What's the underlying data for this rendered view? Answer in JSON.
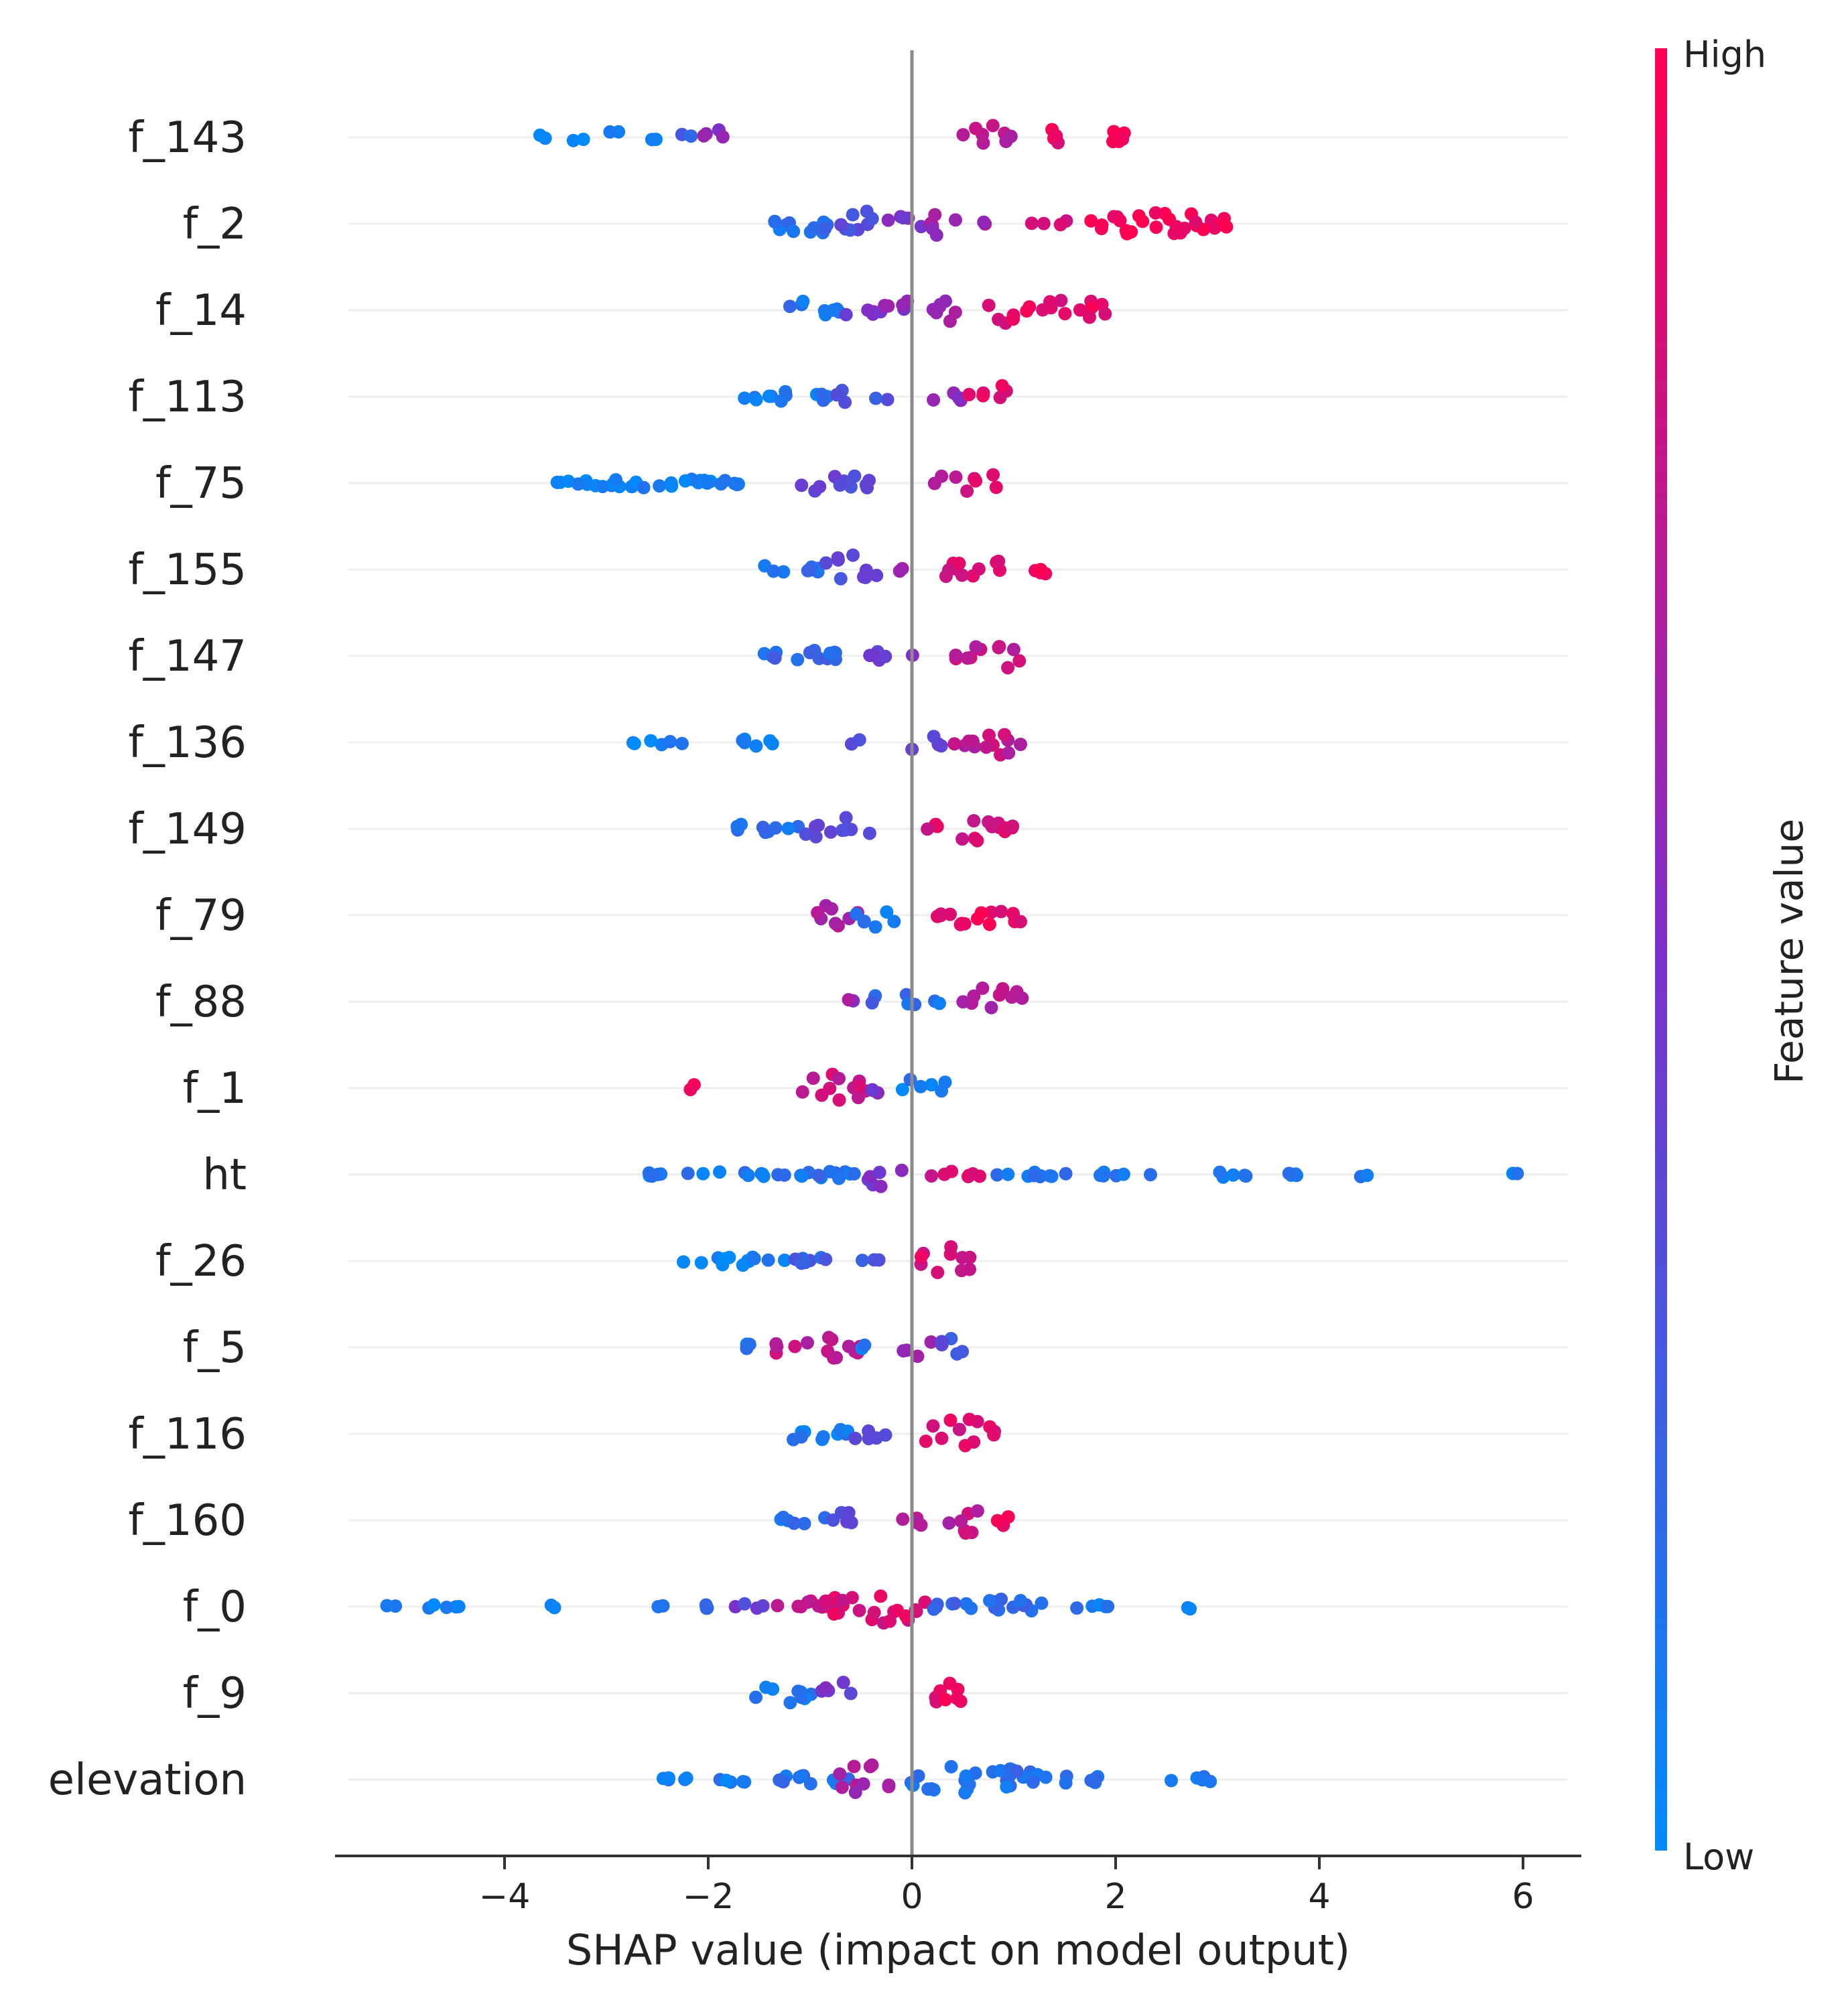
{
  "chart_data": {
    "type": "scatter",
    "subtype": "shap-beeswarm",
    "xlabel": "SHAP value (impact on model output)",
    "xlim": [
      -5.5,
      6.6
    ],
    "xticks": [
      -4,
      -2,
      0,
      2,
      4,
      6
    ],
    "xtick_labels": [
      "−4",
      "−2",
      "0",
      "2",
      "4",
      "6"
    ],
    "colorbar": {
      "title": "Feature value",
      "high_label": "High",
      "low_label": "Low",
      "high_color": "#ff0052",
      "low_color": "#008bfb"
    },
    "features": [
      {
        "name": "f_143",
        "clusters": [
          [
            -3.75,
            -3.6,
            0,
            0.15,
            0.1
          ],
          [
            -3.35,
            -3.2,
            0,
            0.15,
            0.1
          ],
          [
            -3.0,
            -2.85,
            0.05,
            0.3,
            0.2
          ],
          [
            -2.6,
            -2.5,
            0.1,
            0.12,
            0.1
          ],
          [
            -2.3,
            -2.15,
            0.2,
            0.32,
            0.22
          ],
          [
            -2.1,
            -1.85,
            0.55,
            0.4,
            0.3
          ],
          [
            0.5,
            1.0,
            0.75,
            0.38,
            0.3
          ],
          [
            1.25,
            1.55,
            0.92,
            0.36,
            0.25
          ],
          [
            1.75,
            2.1,
            1.0,
            0.38,
            0.3
          ]
        ]
      },
      {
        "name": "f_2",
        "clusters": [
          [
            -1.35,
            -0.75,
            0.15,
            0.3,
            0.55
          ],
          [
            -0.75,
            -0.3,
            0.3,
            0.48,
            0.35
          ],
          [
            -0.3,
            0.25,
            0.5,
            0.2,
            0.2
          ],
          [
            0.1,
            0.5,
            0.6,
            0.32,
            0.35
          ],
          [
            0.5,
            0.8,
            0.65,
            0.1,
            0.1
          ],
          [
            0.9,
            1.7,
            0.85,
            0.1,
            0.05
          ],
          [
            1.7,
            3.1,
            0.96,
            0.32,
            0.6
          ]
        ]
      },
      {
        "name": "f_14",
        "clusters": [
          [
            -1.2,
            -0.7,
            0.12,
            0.3,
            0.4
          ],
          [
            -0.7,
            -0.3,
            0.45,
            0.3,
            0.3
          ],
          [
            -0.3,
            0.25,
            0.55,
            0.25,
            0.3
          ],
          [
            0.25,
            0.55,
            0.65,
            0.4,
            0.3
          ],
          [
            0.75,
            1.1,
            0.9,
            0.4,
            0.3
          ],
          [
            1.1,
            1.95,
            0.9,
            0.3,
            0.4
          ]
        ]
      },
      {
        "name": "f_113",
        "clusters": [
          [
            -1.65,
            -0.8,
            0.1,
            0.18,
            0.5
          ],
          [
            -0.8,
            -0.5,
            0.3,
            0.3,
            0.2
          ],
          [
            -0.45,
            -0.15,
            0.3,
            0.1,
            0.15
          ],
          [
            0.2,
            0.55,
            0.6,
            0.2,
            0.3
          ],
          [
            0.55,
            0.95,
            0.92,
            0.42,
            0.3
          ]
        ]
      },
      {
        "name": "f_75",
        "clusters": [
          [
            -3.5,
            -1.7,
            0.05,
            0.12,
            0.8
          ],
          [
            -1.2,
            -0.35,
            0.35,
            0.25,
            0.4
          ],
          [
            0.2,
            0.45,
            0.7,
            0.32,
            0.3
          ],
          [
            0.5,
            0.85,
            0.85,
            0.4,
            0.3
          ]
        ]
      },
      {
        "name": "f_155",
        "clusters": [
          [
            -1.5,
            -0.85,
            0.15,
            0.2,
            0.35
          ],
          [
            -0.85,
            -0.3,
            0.35,
            0.4,
            0.3
          ],
          [
            -0.2,
            0.0,
            0.7,
            0.1,
            0.15
          ],
          [
            0.3,
            0.9,
            0.88,
            0.45,
            0.35
          ],
          [
            1.0,
            1.45,
            1.0,
            0.15,
            0.2
          ]
        ]
      },
      {
        "name": "f_147",
        "clusters": [
          [
            -1.45,
            -0.5,
            0.2,
            0.15,
            0.5
          ],
          [
            -0.5,
            0.1,
            0.45,
            0.15,
            0.3
          ],
          [
            0.4,
            1.1,
            0.75,
            0.42,
            0.3
          ]
        ]
      },
      {
        "name": "f_136",
        "clusters": [
          [
            -2.75,
            -2.1,
            0.05,
            0.12,
            0.3
          ],
          [
            -1.7,
            -1.2,
            0.1,
            0.2,
            0.3
          ],
          [
            -0.6,
            -0.5,
            0.4,
            0.1,
            0.1
          ],
          [
            -0.1,
            0.3,
            0.35,
            0.22,
            0.3
          ],
          [
            0.3,
            1.1,
            0.75,
            0.42,
            0.3
          ]
        ]
      },
      {
        "name": "f_149",
        "clusters": [
          [
            -1.75,
            -1.1,
            0.15,
            0.2,
            0.4
          ],
          [
            -1.1,
            -0.35,
            0.35,
            0.3,
            0.3
          ],
          [
            0.15,
            1.05,
            0.85,
            0.38,
            0.4
          ]
        ]
      },
      {
        "name": "f_79",
        "clusters": [
          [
            -1.05,
            -0.5,
            0.7,
            0.3,
            0.35
          ],
          [
            -0.6,
            -0.15,
            0.1,
            0.4,
            0.2
          ],
          [
            0.2,
            1.2,
            0.92,
            0.3,
            0.35
          ]
        ]
      },
      {
        "name": "f_88",
        "clusters": [
          [
            -0.7,
            -0.55,
            0.6,
            0.1,
            0.1
          ],
          [
            -0.4,
            0.05,
            0.2,
            0.3,
            0.3
          ],
          [
            0.2,
            0.3,
            0.1,
            0.1,
            0.1
          ],
          [
            0.5,
            1.1,
            0.7,
            0.42,
            0.35
          ]
        ]
      },
      {
        "name": "f_1",
        "clusters": [
          [
            -2.2,
            -2.1,
            0.9,
            0.1,
            0.1
          ],
          [
            -1.1,
            -0.4,
            0.8,
            0.38,
            0.35
          ],
          [
            -0.4,
            -0.1,
            0.5,
            0.2,
            0.3
          ],
          [
            -0.1,
            0.35,
            0.1,
            0.32,
            0.3
          ]
        ]
      },
      {
        "name": "ht",
        "clusters": [
          [
            -2.8,
            -1.2,
            0.1,
            0.06,
            0.4
          ],
          [
            -1.2,
            -0.2,
            0.15,
            0.1,
            0.45
          ],
          [
            -0.45,
            -0.1,
            0.5,
            0.4,
            0.35
          ],
          [
            0.0,
            0.8,
            0.85,
            0.08,
            0.35
          ],
          [
            0.8,
            2.35,
            0.12,
            0.06,
            0.45
          ],
          [
            2.7,
            3.4,
            0.1,
            0.06,
            0.3
          ],
          [
            3.5,
            4.0,
            0.1,
            0.06,
            0.3
          ],
          [
            4.35,
            4.5,
            0.1,
            0.06,
            0.1
          ],
          [
            5.9,
            6.05,
            0.1,
            0.06,
            0.1
          ]
        ]
      },
      {
        "name": "f_26",
        "clusters": [
          [
            -2.25,
            -1.2,
            0.05,
            0.12,
            0.5
          ],
          [
            -1.2,
            -0.25,
            0.25,
            0.12,
            0.4
          ],
          [
            0.0,
            0.65,
            0.85,
            0.38,
            0.3
          ]
        ]
      },
      {
        "name": "f_5",
        "clusters": [
          [
            -1.9,
            -1.5,
            0.1,
            0.1,
            0.2
          ],
          [
            -1.45,
            -0.5,
            0.75,
            0.35,
            0.35
          ],
          [
            -0.5,
            -0.35,
            0.1,
            0.1,
            0.1
          ],
          [
            -0.1,
            0.25,
            0.6,
            0.25,
            0.3
          ],
          [
            0.25,
            0.65,
            0.3,
            0.25,
            0.3
          ]
        ]
      },
      {
        "name": "f_116",
        "clusters": [
          [
            -1.4,
            -0.6,
            0.1,
            0.18,
            0.4
          ],
          [
            -0.6,
            -0.25,
            0.4,
            0.3,
            0.3
          ],
          [
            0.1,
            0.85,
            0.85,
            0.4,
            0.35
          ]
        ]
      },
      {
        "name": "f_160",
        "clusters": [
          [
            -1.3,
            -0.8,
            0.15,
            0.2,
            0.3
          ],
          [
            -0.8,
            -0.45,
            0.4,
            0.35,
            0.3
          ],
          [
            -0.1,
            0.4,
            0.7,
            0.15,
            0.3
          ],
          [
            0.3,
            0.7,
            0.75,
            0.38,
            0.3
          ],
          [
            0.7,
            1.0,
            0.95,
            0.2,
            0.3
          ]
        ]
      },
      {
        "name": "f_0",
        "clusters": [
          [
            -5.2,
            -4.3,
            0.05,
            0.06,
            0.3
          ],
          [
            -3.6,
            -3.5,
            0.05,
            0.06,
            0.1
          ],
          [
            -2.5,
            -1.95,
            0.15,
            0.08,
            0.3
          ],
          [
            -1.9,
            -1.4,
            0.4,
            0.08,
            0.3
          ],
          [
            -1.4,
            -0.65,
            0.8,
            0.15,
            0.4
          ],
          [
            -0.85,
            0.15,
            0.85,
            0.48,
            0.45
          ],
          [
            0.1,
            1.4,
            0.2,
            0.2,
            0.45
          ],
          [
            1.4,
            2.0,
            0.1,
            0.06,
            0.3
          ],
          [
            2.7,
            2.8,
            0.1,
            0.06,
            0.1
          ]
        ]
      },
      {
        "name": "f_9",
        "clusters": [
          [
            -1.55,
            -0.9,
            0.1,
            0.25,
            0.35
          ],
          [
            -0.9,
            -0.6,
            0.45,
            0.38,
            0.3
          ],
          [
            0.0,
            0.6,
            0.9,
            0.32,
            0.3
          ]
        ]
      },
      {
        "name": "elevation",
        "clusters": [
          [
            -2.45,
            -1.4,
            0.08,
            0.08,
            0.35
          ],
          [
            -1.4,
            -0.5,
            0.15,
            0.12,
            0.4
          ],
          [
            -0.75,
            -0.2,
            0.65,
            0.45,
            0.35
          ],
          [
            -0.05,
            1.25,
            0.15,
            0.38,
            0.5
          ],
          [
            1.25,
            2.0,
            0.1,
            0.12,
            0.3
          ],
          [
            2.5,
            3.1,
            0.1,
            0.08,
            0.3
          ]
        ]
      }
    ]
  }
}
